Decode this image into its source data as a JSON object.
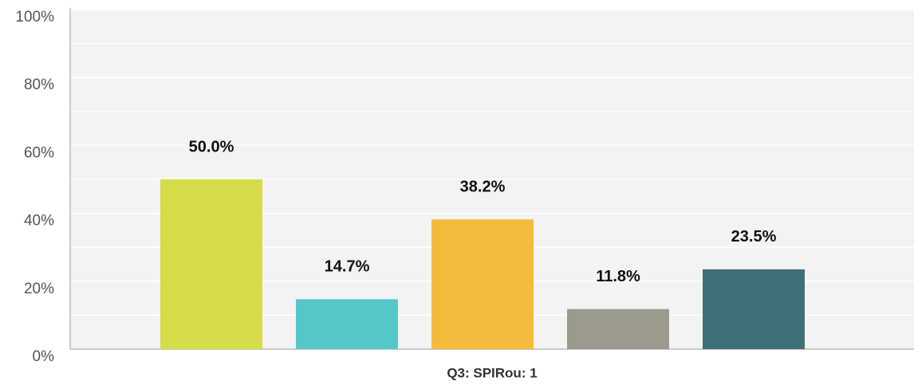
{
  "chart_data": {
    "type": "bar",
    "xlabel": "Q3: SPIRou: 1",
    "values": [
      50.0,
      14.7,
      38.2,
      11.8,
      23.5
    ],
    "value_labels": [
      "50.0%",
      "14.7%",
      "38.2%",
      "11.8%",
      "23.5%"
    ],
    "colors": [
      "#d4dc4a",
      "#55c7c9",
      "#f3bb3b",
      "#9c9a8d",
      "#3f7079"
    ],
    "ylim": [
      0,
      100
    ],
    "yticks": [
      {
        "value": 0,
        "label": "0%"
      },
      {
        "value": 20,
        "label": "20%"
      },
      {
        "value": 40,
        "label": "40%"
      },
      {
        "value": 60,
        "label": "60%"
      },
      {
        "value": 80,
        "label": "80%"
      },
      {
        "value": 100,
        "label": "100%"
      }
    ],
    "yminorticks": [
      10,
      30,
      50,
      70,
      90
    ],
    "grid": true
  }
}
